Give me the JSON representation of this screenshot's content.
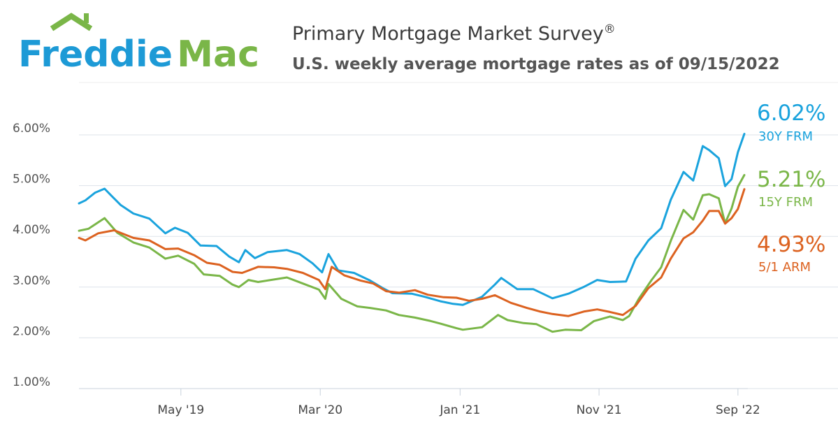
{
  "logo": {
    "text_freddie": "Freddie",
    "text_mac": "Mac"
  },
  "title": "Primary Mortgage Market Survey",
  "title_mark": "®",
  "subtitle": "U.S. weekly average mortgage rates as of 09/15/2022",
  "colors": {
    "frm30": "#1aa3dd",
    "frm15": "#7ab648",
    "arm51": "#dc6220",
    "logo_blue": "#1d9ad6",
    "logo_green": "#7ab648",
    "grid": "#dde3ea"
  },
  "chart_data": {
    "type": "line",
    "title": "Primary Mortgage Market Survey",
    "subtitle": "U.S. weekly average mortgage rates as of 09/15/2022",
    "x_range": [
      "2018-09-20",
      "2022-09-15"
    ],
    "ylim": [
      1.0,
      6.0
    ],
    "y_ticks": [
      "1.00%",
      "2.00%",
      "3.00%",
      "4.00%",
      "5.00%",
      "6.00%"
    ],
    "x_ticks": [
      {
        "label": "May '19",
        "date": "2019-05-01"
      },
      {
        "label": "Mar '20",
        "date": "2020-03-01"
      },
      {
        "label": "Jan '21",
        "date": "2021-01-01"
      },
      {
        "label": "Nov '21",
        "date": "2021-11-01"
      },
      {
        "label": "Sep '22",
        "date": "2022-09-01"
      }
    ],
    "grid": true,
    "series": [
      {
        "name": "30Y FRM",
        "end_label": "6.02%",
        "color_key": "frm30",
        "points": [
          [
            "2018-09-20",
            4.65
          ],
          [
            "2018-10-04",
            4.71
          ],
          [
            "2018-10-25",
            4.86
          ],
          [
            "2018-11-15",
            4.94
          ],
          [
            "2018-11-29",
            4.81
          ],
          [
            "2018-12-20",
            4.62
          ],
          [
            "2019-01-17",
            4.45
          ],
          [
            "2019-02-21",
            4.35
          ],
          [
            "2019-03-28",
            4.06
          ],
          [
            "2019-04-18",
            4.17
          ],
          [
            "2019-05-16",
            4.07
          ],
          [
            "2019-06-13",
            3.82
          ],
          [
            "2019-07-18",
            3.81
          ],
          [
            "2019-08-15",
            3.6
          ],
          [
            "2019-09-05",
            3.49
          ],
          [
            "2019-09-19",
            3.73
          ],
          [
            "2019-10-10",
            3.57
          ],
          [
            "2019-11-07",
            3.69
          ],
          [
            "2019-12-19",
            3.73
          ],
          [
            "2020-01-16",
            3.65
          ],
          [
            "2020-02-13",
            3.47
          ],
          [
            "2020-03-05",
            3.29
          ],
          [
            "2020-03-19",
            3.65
          ],
          [
            "2020-04-09",
            3.33
          ],
          [
            "2020-05-14",
            3.28
          ],
          [
            "2020-06-18",
            3.13
          ],
          [
            "2020-07-16",
            2.98
          ],
          [
            "2020-08-06",
            2.88
          ],
          [
            "2020-09-17",
            2.87
          ],
          [
            "2020-10-15",
            2.81
          ],
          [
            "2020-11-19",
            2.72
          ],
          [
            "2020-12-17",
            2.67
          ],
          [
            "2021-01-07",
            2.65
          ],
          [
            "2021-02-18",
            2.81
          ],
          [
            "2021-03-18",
            3.05
          ],
          [
            "2021-04-01",
            3.18
          ],
          [
            "2021-05-06",
            2.96
          ],
          [
            "2021-06-10",
            2.96
          ],
          [
            "2021-07-22",
            2.78
          ],
          [
            "2021-08-26",
            2.87
          ],
          [
            "2021-09-30",
            3.01
          ],
          [
            "2021-10-28",
            3.14
          ],
          [
            "2021-11-25",
            3.1
          ],
          [
            "2021-12-30",
            3.11
          ],
          [
            "2022-01-20",
            3.56
          ],
          [
            "2022-02-17",
            3.92
          ],
          [
            "2022-03-17",
            4.16
          ],
          [
            "2022-04-07",
            4.72
          ],
          [
            "2022-05-05",
            5.27
          ],
          [
            "2022-05-26",
            5.1
          ],
          [
            "2022-06-16",
            5.78
          ],
          [
            "2022-06-30",
            5.7
          ],
          [
            "2022-07-21",
            5.54
          ],
          [
            "2022-08-04",
            4.99
          ],
          [
            "2022-08-18",
            5.13
          ],
          [
            "2022-09-01",
            5.66
          ],
          [
            "2022-09-15",
            6.02
          ]
        ]
      },
      {
        "name": "15Y FRM",
        "end_label": "5.21%",
        "color_key": "frm15",
        "points": [
          [
            "2018-09-20",
            4.11
          ],
          [
            "2018-10-11",
            4.15
          ],
          [
            "2018-11-15",
            4.36
          ],
          [
            "2018-12-13",
            4.07
          ],
          [
            "2019-01-17",
            3.88
          ],
          [
            "2019-02-21",
            3.78
          ],
          [
            "2019-03-28",
            3.56
          ],
          [
            "2019-04-25",
            3.62
          ],
          [
            "2019-05-30",
            3.46
          ],
          [
            "2019-06-20",
            3.25
          ],
          [
            "2019-07-25",
            3.22
          ],
          [
            "2019-08-22",
            3.05
          ],
          [
            "2019-09-05",
            3.0
          ],
          [
            "2019-09-26",
            3.14
          ],
          [
            "2019-10-17",
            3.1
          ],
          [
            "2019-11-21",
            3.15
          ],
          [
            "2019-12-19",
            3.19
          ],
          [
            "2020-01-23",
            3.07
          ],
          [
            "2020-02-27",
            2.95
          ],
          [
            "2020-03-12",
            2.77
          ],
          [
            "2020-03-19",
            3.06
          ],
          [
            "2020-04-16",
            2.77
          ],
          [
            "2020-05-21",
            2.62
          ],
          [
            "2020-06-18",
            2.59
          ],
          [
            "2020-07-23",
            2.54
          ],
          [
            "2020-08-20",
            2.45
          ],
          [
            "2020-09-24",
            2.4
          ],
          [
            "2020-10-29",
            2.33
          ],
          [
            "2020-11-19",
            2.28
          ],
          [
            "2020-12-24",
            2.19
          ],
          [
            "2021-01-07",
            2.16
          ],
          [
            "2021-02-18",
            2.21
          ],
          [
            "2021-03-25",
            2.45
          ],
          [
            "2021-04-15",
            2.35
          ],
          [
            "2021-05-20",
            2.29
          ],
          [
            "2021-06-17",
            2.27
          ],
          [
            "2021-07-22",
            2.12
          ],
          [
            "2021-08-19",
            2.16
          ],
          [
            "2021-09-23",
            2.15
          ],
          [
            "2021-10-21",
            2.33
          ],
          [
            "2021-11-25",
            2.42
          ],
          [
            "2021-12-23",
            2.35
          ],
          [
            "2022-01-06",
            2.43
          ],
          [
            "2022-01-27",
            2.77
          ],
          [
            "2022-02-24",
            3.14
          ],
          [
            "2022-03-17",
            3.39
          ],
          [
            "2022-04-07",
            3.91
          ],
          [
            "2022-05-05",
            4.52
          ],
          [
            "2022-05-26",
            4.33
          ],
          [
            "2022-06-16",
            4.81
          ],
          [
            "2022-06-30",
            4.83
          ],
          [
            "2022-07-21",
            4.75
          ],
          [
            "2022-08-04",
            4.26
          ],
          [
            "2022-08-18",
            4.55
          ],
          [
            "2022-09-01",
            4.98
          ],
          [
            "2022-09-15",
            5.21
          ]
        ]
      },
      {
        "name": "5/1 ARM",
        "end_label": "4.93%",
        "color_key": "arm51",
        "points": [
          [
            "2018-09-20",
            3.97
          ],
          [
            "2018-10-04",
            3.92
          ],
          [
            "2018-11-01",
            4.06
          ],
          [
            "2018-12-06",
            4.12
          ],
          [
            "2019-01-17",
            3.97
          ],
          [
            "2019-02-21",
            3.92
          ],
          [
            "2019-03-28",
            3.75
          ],
          [
            "2019-04-25",
            3.76
          ],
          [
            "2019-05-30",
            3.63
          ],
          [
            "2019-06-27",
            3.48
          ],
          [
            "2019-07-25",
            3.44
          ],
          [
            "2019-08-22",
            3.3
          ],
          [
            "2019-09-12",
            3.28
          ],
          [
            "2019-10-17",
            3.4
          ],
          [
            "2019-11-21",
            3.39
          ],
          [
            "2019-12-19",
            3.36
          ],
          [
            "2020-01-23",
            3.28
          ],
          [
            "2020-02-27",
            3.14
          ],
          [
            "2020-03-12",
            2.96
          ],
          [
            "2020-03-26",
            3.4
          ],
          [
            "2020-04-23",
            3.23
          ],
          [
            "2020-05-28",
            3.13
          ],
          [
            "2020-06-25",
            3.07
          ],
          [
            "2020-07-23",
            2.92
          ],
          [
            "2020-08-20",
            2.89
          ],
          [
            "2020-09-24",
            2.94
          ],
          [
            "2020-10-22",
            2.85
          ],
          [
            "2020-11-26",
            2.8
          ],
          [
            "2020-12-24",
            2.79
          ],
          [
            "2021-01-21",
            2.73
          ],
          [
            "2021-02-18",
            2.77
          ],
          [
            "2021-03-18",
            2.84
          ],
          [
            "2021-04-22",
            2.69
          ],
          [
            "2021-05-27",
            2.59
          ],
          [
            "2021-06-24",
            2.52
          ],
          [
            "2021-07-22",
            2.47
          ],
          [
            "2021-08-26",
            2.43
          ],
          [
            "2021-09-30",
            2.52
          ],
          [
            "2021-10-28",
            2.56
          ],
          [
            "2021-11-25",
            2.51
          ],
          [
            "2021-12-23",
            2.45
          ],
          [
            "2022-01-20",
            2.63
          ],
          [
            "2022-02-17",
            2.98
          ],
          [
            "2022-03-17",
            3.19
          ],
          [
            "2022-04-07",
            3.56
          ],
          [
            "2022-05-05",
            3.96
          ],
          [
            "2022-05-26",
            4.08
          ],
          [
            "2022-06-16",
            4.31
          ],
          [
            "2022-06-30",
            4.5
          ],
          [
            "2022-07-21",
            4.5
          ],
          [
            "2022-08-04",
            4.25
          ],
          [
            "2022-08-18",
            4.36
          ],
          [
            "2022-09-01",
            4.54
          ],
          [
            "2022-09-15",
            4.93
          ]
        ]
      }
    ]
  }
}
